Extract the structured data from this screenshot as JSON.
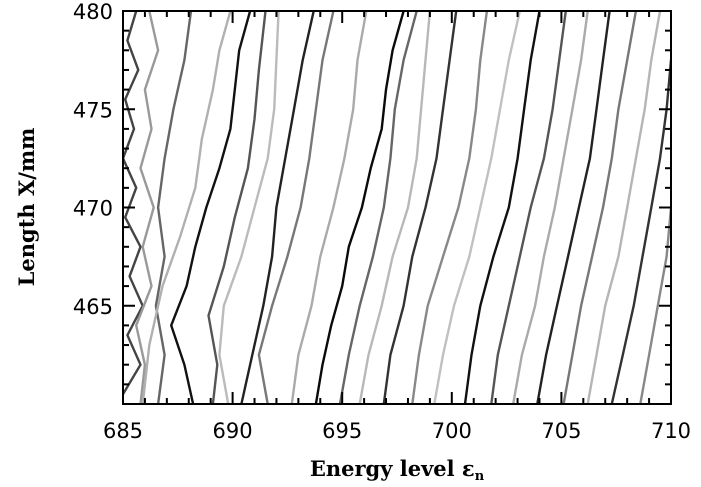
{
  "chart_data": {
    "type": "line",
    "xlabel": "Energy level",
    "xlabel_symbol": "ε",
    "xlabel_subscript": "n",
    "ylabel": "Length X/mm",
    "xlim": [
      685,
      710
    ],
    "ylim": [
      460,
      480
    ],
    "x_ticks": [
      685,
      690,
      695,
      700,
      705,
      710
    ],
    "y_ticks": [
      465,
      470,
      475,
      480
    ],
    "x_tick_labels": [
      "685",
      "690",
      "695",
      "700",
      "705",
      "710"
    ],
    "y_tick_labels": [
      "465",
      "470",
      "475",
      "480"
    ],
    "grid": false,
    "legend": "none",
    "series": [
      {
        "color": "#444444",
        "points": [
          [
            685.0,
            460.5
          ],
          [
            685.8,
            462.0
          ],
          [
            685.2,
            463.5
          ],
          [
            685.9,
            465.0
          ],
          [
            685.3,
            466.5
          ],
          [
            685.8,
            468.0
          ],
          [
            685.1,
            469.5
          ],
          [
            685.6,
            471.0
          ],
          [
            685.0,
            472.5
          ],
          [
            685.5,
            474.0
          ],
          [
            685.1,
            475.5
          ],
          [
            685.7,
            477.0
          ],
          [
            685.2,
            478.5
          ],
          [
            685.6,
            480.0
          ]
        ]
      },
      {
        "color": "#999999",
        "points": [
          [
            685.8,
            460.0
          ],
          [
            686.0,
            462.0
          ],
          [
            685.6,
            464.0
          ],
          [
            686.3,
            466.0
          ],
          [
            685.9,
            468.0
          ],
          [
            686.4,
            470.0
          ],
          [
            685.8,
            472.0
          ],
          [
            686.3,
            474.0
          ],
          [
            686.0,
            476.0
          ],
          [
            686.6,
            478.0
          ],
          [
            686.2,
            480.0
          ]
        ]
      },
      {
        "color": "#666666",
        "points": [
          [
            686.6,
            460.0
          ],
          [
            686.9,
            462.5
          ],
          [
            686.5,
            465.0
          ],
          [
            686.9,
            467.5
          ],
          [
            686.6,
            470.0
          ],
          [
            686.9,
            472.5
          ],
          [
            687.3,
            475.0
          ],
          [
            687.8,
            477.5
          ],
          [
            688.1,
            480.0
          ]
        ]
      },
      {
        "color": "#b0b0b0",
        "points": [
          [
            685.9,
            460.0
          ],
          [
            686.2,
            463.0
          ],
          [
            686.8,
            466.0
          ],
          [
            687.6,
            468.5
          ],
          [
            688.3,
            471.0
          ],
          [
            688.6,
            473.5
          ],
          [
            689.1,
            476.0
          ],
          [
            689.4,
            478.0
          ],
          [
            689.9,
            480.0
          ]
        ]
      },
      {
        "color": "#111111",
        "points": [
          [
            688.2,
            460.0
          ],
          [
            687.8,
            462.0
          ],
          [
            687.2,
            464.0
          ],
          [
            687.9,
            466.0
          ],
          [
            688.3,
            468.0
          ],
          [
            688.8,
            470.0
          ],
          [
            689.4,
            472.0
          ],
          [
            689.9,
            474.0
          ],
          [
            690.1,
            476.0
          ],
          [
            690.3,
            478.0
          ],
          [
            690.8,
            480.0
          ]
        ]
      },
      {
        "color": "#555555",
        "points": [
          [
            689.1,
            460.0
          ],
          [
            689.3,
            462.0
          ],
          [
            688.9,
            464.5
          ],
          [
            689.6,
            467.0
          ],
          [
            690.1,
            469.5
          ],
          [
            690.7,
            472.0
          ],
          [
            691.0,
            474.5
          ],
          [
            691.2,
            477.0
          ],
          [
            691.5,
            480.0
          ]
        ]
      },
      {
        "color": "#bbbbbb",
        "points": [
          [
            689.8,
            460.0
          ],
          [
            689.4,
            462.5
          ],
          [
            689.6,
            465.0
          ],
          [
            690.4,
            467.5
          ],
          [
            691.0,
            470.0
          ],
          [
            691.6,
            472.5
          ],
          [
            691.9,
            475.0
          ],
          [
            692.0,
            477.5
          ],
          [
            692.1,
            480.0
          ]
        ]
      },
      {
        "color": "#222222",
        "points": [
          [
            690.4,
            460.0
          ],
          [
            690.9,
            462.5
          ],
          [
            691.4,
            465.0
          ],
          [
            691.8,
            467.5
          ],
          [
            692.0,
            470.0
          ],
          [
            692.4,
            472.5
          ],
          [
            692.8,
            475.0
          ],
          [
            693.2,
            477.5
          ],
          [
            693.7,
            480.0
          ]
        ]
      },
      {
        "color": "#777777",
        "points": [
          [
            691.6,
            460.0
          ],
          [
            691.2,
            462.5
          ],
          [
            691.8,
            465.0
          ],
          [
            692.5,
            467.5
          ],
          [
            693.1,
            470.0
          ],
          [
            693.5,
            472.5
          ],
          [
            693.8,
            475.0
          ],
          [
            694.1,
            477.5
          ],
          [
            694.6,
            480.0
          ]
        ]
      },
      {
        "color": "#aaaaaa",
        "points": [
          [
            692.7,
            460.0
          ],
          [
            693.0,
            462.5
          ],
          [
            693.6,
            465.0
          ],
          [
            694.0,
            467.5
          ],
          [
            694.6,
            470.0
          ],
          [
            695.1,
            472.5
          ],
          [
            695.5,
            475.0
          ],
          [
            695.7,
            477.5
          ],
          [
            696.1,
            480.0
          ]
        ]
      },
      {
        "color": "#0a0a0a",
        "points": [
          [
            693.8,
            460.0
          ],
          [
            694.1,
            462.0
          ],
          [
            694.5,
            464.0
          ],
          [
            695.0,
            466.0
          ],
          [
            695.3,
            468.0
          ],
          [
            695.9,
            470.0
          ],
          [
            696.3,
            472.0
          ],
          [
            696.8,
            474.0
          ],
          [
            697.0,
            476.0
          ],
          [
            697.3,
            478.0
          ],
          [
            697.8,
            480.0
          ]
        ]
      },
      {
        "color": "#666666",
        "points": [
          [
            694.9,
            460.0
          ],
          [
            695.3,
            462.5
          ],
          [
            695.8,
            465.0
          ],
          [
            696.4,
            467.5
          ],
          [
            696.9,
            470.0
          ],
          [
            697.2,
            472.5
          ],
          [
            697.4,
            475.0
          ],
          [
            697.8,
            477.5
          ],
          [
            698.4,
            480.0
          ]
        ]
      },
      {
        "color": "#b8b8b8",
        "points": [
          [
            695.8,
            460.0
          ],
          [
            696.2,
            462.5
          ],
          [
            696.8,
            465.0
          ],
          [
            697.3,
            467.5
          ],
          [
            698.0,
            470.0
          ],
          [
            698.4,
            472.5
          ],
          [
            698.6,
            475.0
          ],
          [
            698.8,
            477.5
          ],
          [
            699.0,
            480.0
          ]
        ]
      },
      {
        "color": "#333333",
        "points": [
          [
            696.9,
            460.0
          ],
          [
            697.2,
            462.5
          ],
          [
            697.8,
            465.0
          ],
          [
            698.2,
            467.5
          ],
          [
            698.8,
            470.0
          ],
          [
            699.3,
            472.5
          ],
          [
            699.6,
            475.0
          ],
          [
            699.9,
            477.5
          ],
          [
            700.2,
            480.0
          ]
        ]
      },
      {
        "color": "#888888",
        "points": [
          [
            698.2,
            460.0
          ],
          [
            698.5,
            462.5
          ],
          [
            698.9,
            465.0
          ],
          [
            699.6,
            467.5
          ],
          [
            700.3,
            470.0
          ],
          [
            700.8,
            472.5
          ],
          [
            701.1,
            475.0
          ],
          [
            701.3,
            477.5
          ],
          [
            701.6,
            480.0
          ]
        ]
      },
      {
        "color": "#c0c0c0",
        "points": [
          [
            699.2,
            460.0
          ],
          [
            699.6,
            462.5
          ],
          [
            700.1,
            465.0
          ],
          [
            700.8,
            467.5
          ],
          [
            701.3,
            470.0
          ],
          [
            701.8,
            472.5
          ],
          [
            702.2,
            475.0
          ],
          [
            702.6,
            477.5
          ],
          [
            703.1,
            480.0
          ]
        ]
      },
      {
        "color": "#111111",
        "points": [
          [
            700.6,
            460.0
          ],
          [
            700.9,
            462.5
          ],
          [
            701.3,
            465.0
          ],
          [
            701.9,
            467.5
          ],
          [
            702.6,
            470.0
          ],
          [
            703.0,
            472.5
          ],
          [
            703.3,
            475.0
          ],
          [
            703.6,
            477.5
          ],
          [
            704.0,
            480.0
          ]
        ]
      },
      {
        "color": "#555555",
        "points": [
          [
            701.8,
            460.0
          ],
          [
            702.1,
            462.5
          ],
          [
            702.6,
            465.0
          ],
          [
            703.1,
            467.5
          ],
          [
            703.6,
            470.0
          ],
          [
            704.2,
            472.5
          ],
          [
            704.6,
            475.0
          ],
          [
            704.9,
            477.5
          ],
          [
            705.2,
            480.0
          ]
        ]
      },
      {
        "color": "#aaaaaa",
        "points": [
          [
            702.8,
            460.0
          ],
          [
            703.2,
            462.5
          ],
          [
            703.8,
            465.0
          ],
          [
            704.2,
            467.5
          ],
          [
            704.7,
            470.0
          ],
          [
            705.1,
            472.5
          ],
          [
            705.5,
            475.0
          ],
          [
            705.9,
            477.5
          ],
          [
            706.2,
            480.0
          ]
        ]
      },
      {
        "color": "#222222",
        "points": [
          [
            703.9,
            460.0
          ],
          [
            704.3,
            462.5
          ],
          [
            704.8,
            465.0
          ],
          [
            705.3,
            467.5
          ],
          [
            705.8,
            470.0
          ],
          [
            706.3,
            472.5
          ],
          [
            706.6,
            475.0
          ],
          [
            706.9,
            477.5
          ],
          [
            707.2,
            480.0
          ]
        ]
      },
      {
        "color": "#777777",
        "points": [
          [
            705.1,
            460.0
          ],
          [
            705.5,
            462.5
          ],
          [
            705.9,
            465.0
          ],
          [
            706.4,
            467.5
          ],
          [
            706.9,
            470.0
          ],
          [
            707.3,
            472.5
          ],
          [
            707.6,
            475.0
          ],
          [
            708.0,
            477.5
          ],
          [
            708.4,
            480.0
          ]
        ]
      },
      {
        "color": "#b5b5b5",
        "points": [
          [
            706.2,
            460.0
          ],
          [
            706.6,
            462.5
          ],
          [
            707.0,
            465.0
          ],
          [
            707.6,
            467.5
          ],
          [
            708.0,
            470.0
          ],
          [
            708.4,
            472.5
          ],
          [
            708.8,
            475.0
          ],
          [
            709.1,
            477.5
          ],
          [
            709.5,
            480.0
          ]
        ]
      },
      {
        "color": "#333333",
        "points": [
          [
            707.3,
            460.0
          ],
          [
            707.8,
            462.5
          ],
          [
            708.3,
            465.0
          ],
          [
            708.7,
            467.5
          ],
          [
            709.1,
            470.0
          ],
          [
            709.5,
            472.5
          ],
          [
            709.8,
            475.0
          ],
          [
            710.0,
            477.5
          ]
        ]
      },
      {
        "color": "#888888",
        "points": [
          [
            708.6,
            460.0
          ],
          [
            709.0,
            462.5
          ],
          [
            709.4,
            465.0
          ],
          [
            709.8,
            467.5
          ],
          [
            710.0,
            470.0
          ]
        ]
      }
    ]
  }
}
